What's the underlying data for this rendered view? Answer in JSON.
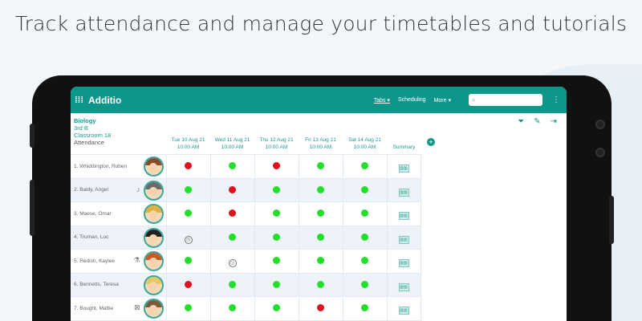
{
  "headline": "Track attendance and manage your timetables and tutorials",
  "app": {
    "title": "Additio",
    "menu_icon": "menu-grid-icon",
    "nav": {
      "tabs": "Tabs ▾",
      "scheduling": "Scheduling",
      "more": "More ▾"
    },
    "search_placeholder": ""
  },
  "class_info": {
    "subject": "Biology",
    "group": "3rd B",
    "room": "Classroom 18",
    "view": "Attendance"
  },
  "tools": [
    "filter-icon",
    "pencil-icon",
    "collapse-right-icon"
  ],
  "columns": [
    {
      "day": "Tue 10 Aug 21",
      "time": "10:00 AM"
    },
    {
      "day": "Wed 11 Aug 21",
      "time": "10:00 AM"
    },
    {
      "day": "Thu 12 Aug 21",
      "time": "10:00 AM"
    },
    {
      "day": "Fri 13 Aug 21",
      "time": "10:00 AM"
    },
    {
      "day": "Sat 14 Aug 21",
      "time": "10:00 AM"
    }
  ],
  "summary_label": "Summary",
  "colors": {
    "accent": "#0e968a",
    "present": "#22e02a",
    "absent": "#e0101c"
  },
  "legend": {
    "p": "present",
    "a": "absent",
    "l": "late",
    "e": "excused-late"
  },
  "students": [
    {
      "name": "1. Whiddington, Ruben",
      "hair": "#8a4a2a",
      "mark": "",
      "status": [
        "a",
        "p",
        "a",
        "p",
        "p"
      ]
    },
    {
      "name": "2. Baldy, Angel",
      "hair": "#6b6b6b",
      "mark": "♪",
      "status": [
        "p",
        "a",
        "p",
        "p",
        "p"
      ]
    },
    {
      "name": "3. Maese, Omar",
      "hair": "#e0b040",
      "mark": "",
      "status": [
        "p",
        "a",
        "p",
        "p",
        "p"
      ]
    },
    {
      "name": "4. Truman, Luc",
      "hair": "#222",
      "mark": "",
      "status": [
        "l",
        "p",
        "p",
        "p",
        "p"
      ]
    },
    {
      "name": "5. Redish, Kaylee",
      "hair": "#c85a2a",
      "mark": "⚗",
      "status": [
        "p",
        "e",
        "p",
        "p",
        "p"
      ]
    },
    {
      "name": "6. Bennetts, Teresa",
      "hair": "#e8c860",
      "mark": "",
      "status": [
        "a",
        "p",
        "p",
        "p",
        "p"
      ]
    },
    {
      "name": "7. Bought, Mattie",
      "hair": "#7a5a3a",
      "mark": "⊠",
      "status": [
        "p",
        "p",
        "p",
        "a",
        "p"
      ]
    }
  ]
}
